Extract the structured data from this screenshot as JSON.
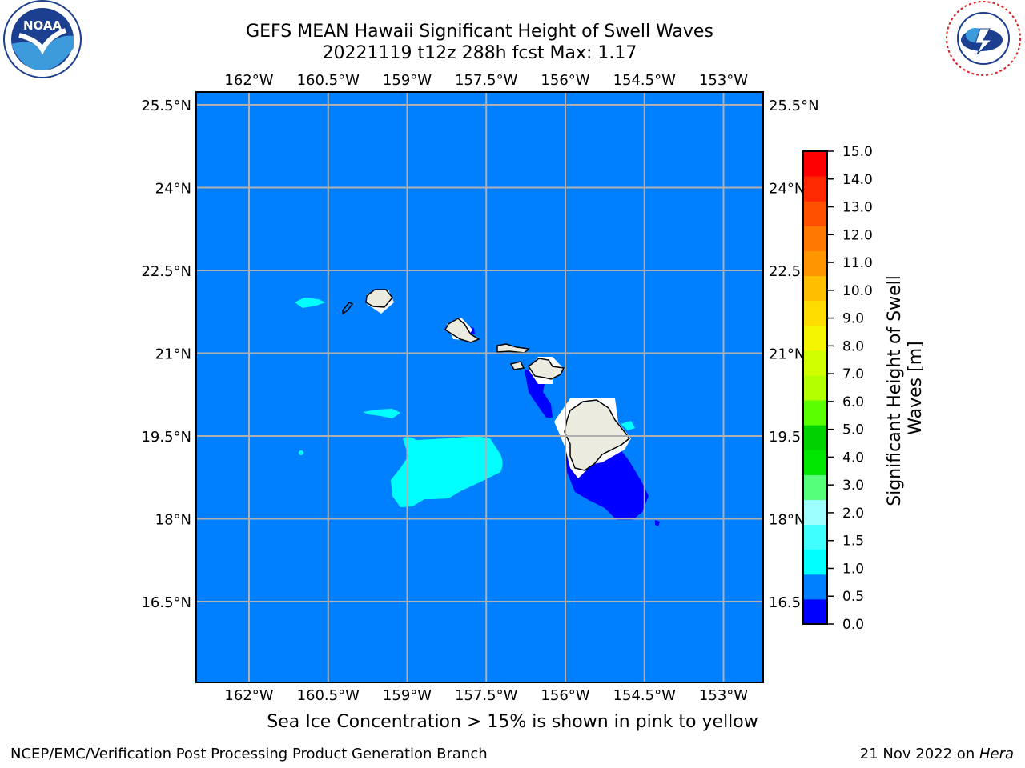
{
  "title_line1": "GEFS MEAN Hawaii Significant Height of Swell Waves",
  "title_line2": "20221119 t12z 288h fcst   Max: 1.17",
  "note": "Sea Ice Concentration > 15% is shown in pink to yellow",
  "footer_left": "NCEP/EMC/Verification Post Processing Product Generation Branch",
  "footer_date": "21 Nov 2022 on ",
  "footer_host": "Hera",
  "logos": {
    "left": "noaa-logo",
    "right": "nws-logo"
  },
  "map": {
    "lon_labels": [
      "162°W",
      "160.5°W",
      "159°W",
      "157.5°W",
      "156°W",
      "154.5°W",
      "153°W"
    ],
    "lon_values": [
      -162,
      -160.5,
      -159,
      -157.5,
      -156,
      -154.5,
      -153
    ],
    "lat_labels": [
      "25.5°N",
      "24°N",
      "22.5°N",
      "21°N",
      "19.5°N",
      "18°N",
      "16.5°N"
    ],
    "lat_values": [
      25.5,
      24,
      22.5,
      21,
      19.5,
      18,
      16.5
    ],
    "colors": {
      "ocean": "#0080ff",
      "land": "#ecebdf",
      "grid": "#b0b0b0"
    }
  },
  "colorbar": {
    "label": "Significant Height of Swell Waves [m]",
    "label_line1": "Significant Height of Swell",
    "label_line2": "Waves [m]",
    "ticks": [
      "15.0",
      "14.0",
      "13.0",
      "12.0",
      "11.0",
      "10.0",
      "9.0",
      "8.0",
      "7.0",
      "6.0",
      "5.0",
      "4.0",
      "3.0",
      "2.0",
      "1.5",
      "1.0",
      "0.5",
      "0.0"
    ],
    "colors": [
      "#0000ff",
      "#0080ff",
      "#00ffff",
      "#40ffff",
      "#9dffff",
      "#55ff79",
      "#00e600",
      "#00d200",
      "#5aff00",
      "#b4ff00",
      "#d2ff00",
      "#f5f500",
      "#ffdc00",
      "#ffbe00",
      "#ff9600",
      "#ff7800",
      "#ff5000",
      "#ff2800",
      "#ff0000"
    ]
  }
}
